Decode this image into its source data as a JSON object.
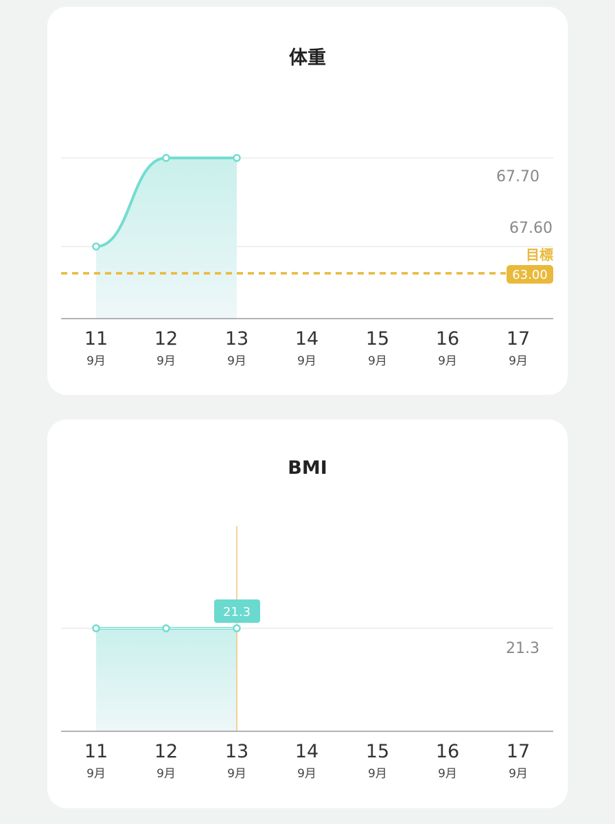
{
  "x_axis": {
    "days": [
      "11",
      "12",
      "13",
      "14",
      "15",
      "16",
      "17"
    ],
    "months": [
      "9月",
      "9月",
      "9月",
      "9月",
      "9月",
      "9月",
      "9月"
    ]
  },
  "colors": {
    "line": "#74dcd0",
    "fill_top": "#c9f0ec",
    "fill_bottom": "#eef7f8",
    "goal": "#e9b93b",
    "background": "#f1f3f2",
    "card": "#ffffff",
    "tooltip": "#6ad9ce",
    "cursor": "#f0c47a"
  },
  "chart_data": [
    {
      "type": "area",
      "title": "体重",
      "categories": [
        "11",
        "12",
        "13",
        "14",
        "15",
        "16",
        "17"
      ],
      "series": [
        {
          "values": [
            67.6,
            67.7,
            67.7,
            null,
            null,
            null,
            null
          ]
        }
      ],
      "y_tick_labels": [
        "67.70",
        "67.60"
      ],
      "goal": {
        "label": "目標",
        "value": 63.0,
        "value_label": "63.00"
      },
      "grid": true
    },
    {
      "type": "area",
      "title": "BMI",
      "categories": [
        "11",
        "12",
        "13",
        "14",
        "15",
        "16",
        "17"
      ],
      "series": [
        {
          "values": [
            21.3,
            21.3,
            21.3,
            null,
            null,
            null,
            null
          ]
        }
      ],
      "y_tick_labels": [
        "21.3"
      ],
      "selected": {
        "category": "13",
        "tooltip": "21.3"
      },
      "grid": true
    }
  ]
}
